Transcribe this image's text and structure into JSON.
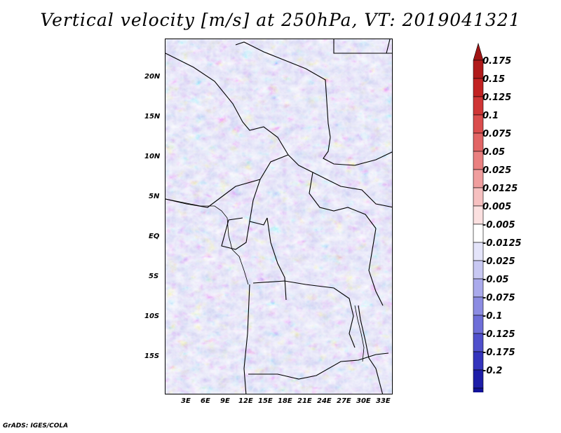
{
  "title": "Vertical velocity [m/s] at 250hPa, VT: 2019041321",
  "credit": "GrADS: IGES/COLA",
  "map": {
    "variable": "Vertical velocity",
    "units": "m/s",
    "level": "250hPa",
    "valid_time": "2019041321",
    "lat_labels": [
      "20N",
      "15N",
      "10N",
      "5N",
      "EQ",
      "5S",
      "10S",
      "15S"
    ],
    "lon_labels": [
      "3E",
      "6E",
      "9E",
      "12E",
      "15E",
      "18E",
      "21E",
      "24E",
      "27E",
      "30E",
      "33E"
    ]
  },
  "colorbar": {
    "labels": [
      "0.175",
      "0.15",
      "0.125",
      "0.1",
      "0.075",
      "0.05",
      "0.025",
      "0.0125",
      "0.005",
      "-0.005",
      "-0.0125",
      "-0.025",
      "-0.05",
      "-0.075",
      "-0.1",
      "-0.125",
      "-0.175",
      "-0.2"
    ],
    "colors": [
      "#b01a1a",
      "#c22222",
      "#cf3535",
      "#da4d4d",
      "#e26565",
      "#ea8080",
      "#f09e9e",
      "#f6c0c0",
      "#fbe0e0",
      "#ffffff",
      "#e4e4fa",
      "#c8c8f2",
      "#aaaaec",
      "#8c8ce2",
      "#6e6ed8",
      "#5050cc",
      "#3434bd",
      "#1e1ea8",
      "#12129a"
    ],
    "top_arrow_color": "#a01414",
    "bottom_arrow_color": "#0c0c86"
  }
}
